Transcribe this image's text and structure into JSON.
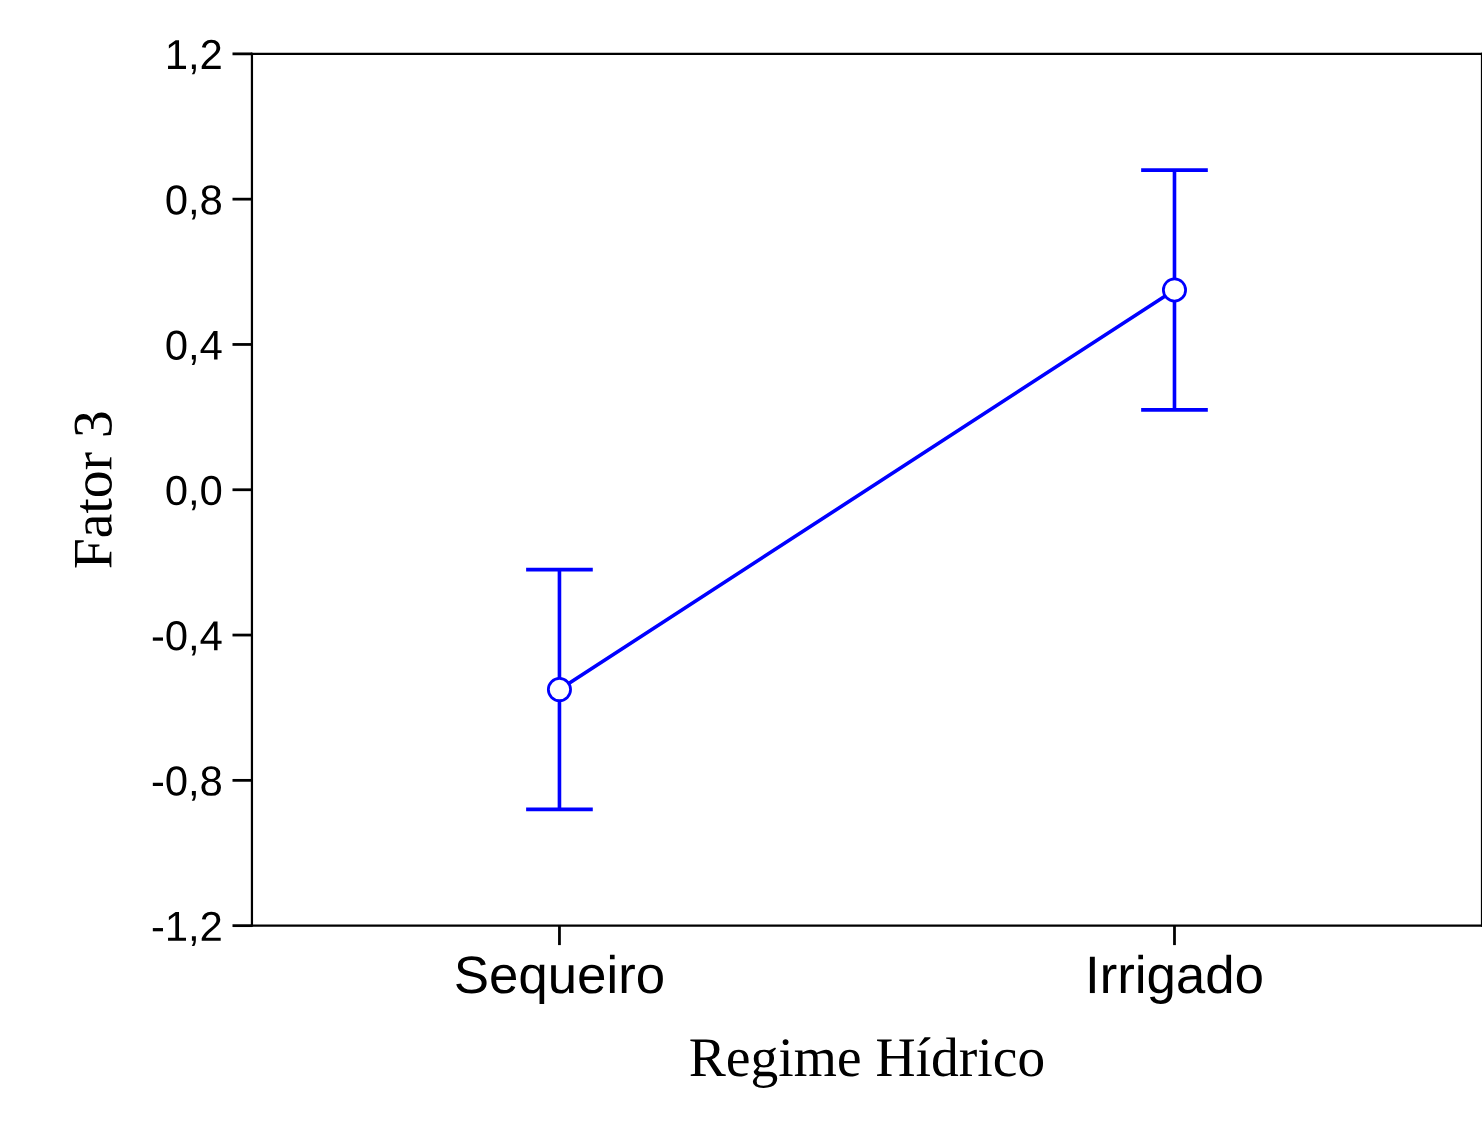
{
  "chart_data": {
    "type": "line",
    "xlabel": "Regime Hídrico",
    "ylabel": "Fator 3",
    "categories": [
      "Sequeiro",
      "Irrigado"
    ],
    "series": [
      {
        "color": "#0000ff",
        "values": [
          -0.55,
          0.55
        ],
        "errors": [
          0.33,
          0.33
        ]
      }
    ],
    "ylim": [
      -1.2,
      1.2
    ],
    "yticks": [
      {
        "value": -1.2,
        "label": "-1,2"
      },
      {
        "value": -0.8,
        "label": "-0,8"
      },
      {
        "value": -0.4,
        "label": "-0,4"
      },
      {
        "value": 0.0,
        "label": "0,0"
      },
      {
        "value": 0.4,
        "label": "0,4"
      },
      {
        "value": 0.8,
        "label": "0,8"
      },
      {
        "value": 1.2,
        "label": "1,2"
      }
    ],
    "marker": "circle",
    "line_style": "solid",
    "grid": false,
    "legend": false
  }
}
